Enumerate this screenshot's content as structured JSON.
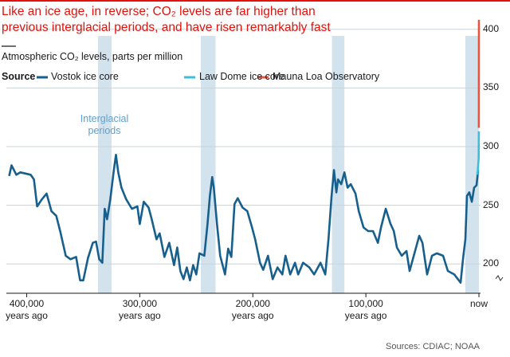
{
  "chart_data": {
    "type": "line",
    "title": "Like an ice age, in reverse; CO₂ levels are far higher than previous interglacial periods, and have risen remarkably fast",
    "subtitle": "Atmospheric CO₂ levels, parts per million",
    "legend_title": "Source",
    "annotation": "Interglacial periods",
    "source": "Sources: CDIAC; NOAA",
    "xlim": [
      418000,
      0
    ],
    "ylim": [
      175,
      410
    ],
    "xticks": [
      {
        "value": 400000,
        "label": "400,000 years ago"
      },
      {
        "value": 300000,
        "label": "300,000 years ago"
      },
      {
        "value": 200000,
        "label": "200,000 years ago"
      },
      {
        "value": 100000,
        "label": "100,000 years ago"
      },
      {
        "value": 0,
        "label": "now"
      }
    ],
    "yticks": [
      200,
      250,
      300,
      350,
      400
    ],
    "grid": true,
    "shaded_regions": [
      [
        337000,
        325000
      ],
      [
        246000,
        233000
      ],
      [
        130000,
        119000
      ],
      [
        12000,
        0
      ]
    ],
    "shade_color": "#d3e3ee",
    "series": [
      {
        "name": "Vostok ice core",
        "color": "#17608e",
        "x": [
          415500,
          413400,
          409200,
          405600,
          396500,
          393600,
          390800,
          386600,
          382400,
          378200,
          373900,
          370400,
          365500,
          361300,
          356300,
          352800,
          350000,
          345800,
          341500,
          338700,
          335900,
          333100,
          331000,
          328900,
          326100,
          323200,
          321100,
          319000,
          316200,
          312000,
          307000,
          302100,
          300000,
          296500,
          292200,
          289400,
          285200,
          282400,
          278200,
          273900,
          269700,
          266900,
          264100,
          261300,
          258400,
          255600,
          252800,
          250000,
          247200,
          242900,
          240100,
          238000,
          235900,
          234500,
          231700,
          228900,
          224600,
          221800,
          219000,
          216200,
          213400,
          209100,
          204900,
          200700,
          197900,
          193600,
          190800,
          186600,
          182400,
          178200,
          173900,
          171100,
          166900,
          162700,
          159900,
          155600,
          150000,
          145800,
          140100,
          135900,
          133100,
          130300,
          128200,
          126100,
          124600,
          121800,
          119000,
          116200,
          113400,
          109200,
          106300,
          102100,
          97900,
          93700,
          89400,
          86600,
          82400,
          78200,
          75300,
          72500,
          68300,
          64100,
          61300,
          57000,
          52800,
          50000,
          45800,
          41500,
          37300,
          31700,
          27500,
          21800,
          16200,
          14100,
          12000,
          10600,
          8500,
          6300,
          4200,
          2100,
          700
        ],
        "values": [
          275,
          284,
          276,
          278,
          276,
          272,
          249,
          255,
          260,
          245,
          241,
          228,
          207,
          204,
          206,
          186,
          186,
          205,
          218,
          219,
          204,
          201,
          247,
          238,
          255,
          278,
          293,
          278,
          265,
          255,
          247,
          249,
          234,
          253,
          248,
          238,
          221,
          226,
          206,
          218,
          199,
          214,
          194,
          187,
          197,
          186,
          199,
          191,
          209,
          207,
          234,
          258,
          274,
          265,
          234,
          207,
          191,
          213,
          206,
          251,
          256,
          248,
          245,
          231,
          221,
          201,
          195,
          207,
          187,
          197,
          191,
          207,
          191,
          201,
          191,
          201,
          197,
          191,
          201,
          191,
          221,
          258,
          280,
          261,
          272,
          268,
          278,
          265,
          268,
          260,
          245,
          231,
          228,
          228,
          218,
          231,
          247,
          234,
          228,
          214,
          207,
          211,
          194,
          209,
          224,
          218,
          191,
          207,
          209,
          207,
          194,
          191,
          184,
          204,
          221,
          258,
          261,
          253,
          265,
          267,
          280
        ]
      },
      {
        "name": "Law Dome ice core",
        "color": "#3dbfd9",
        "x": [
          1500,
          1000,
          200,
          100
        ],
        "values": [
          276,
          280,
          290,
          313
        ]
      },
      {
        "name": "Mauna Loa Observatory",
        "color": "#e8553f",
        "x": [
          61,
          0
        ],
        "values": [
          316,
          408
        ]
      }
    ]
  }
}
